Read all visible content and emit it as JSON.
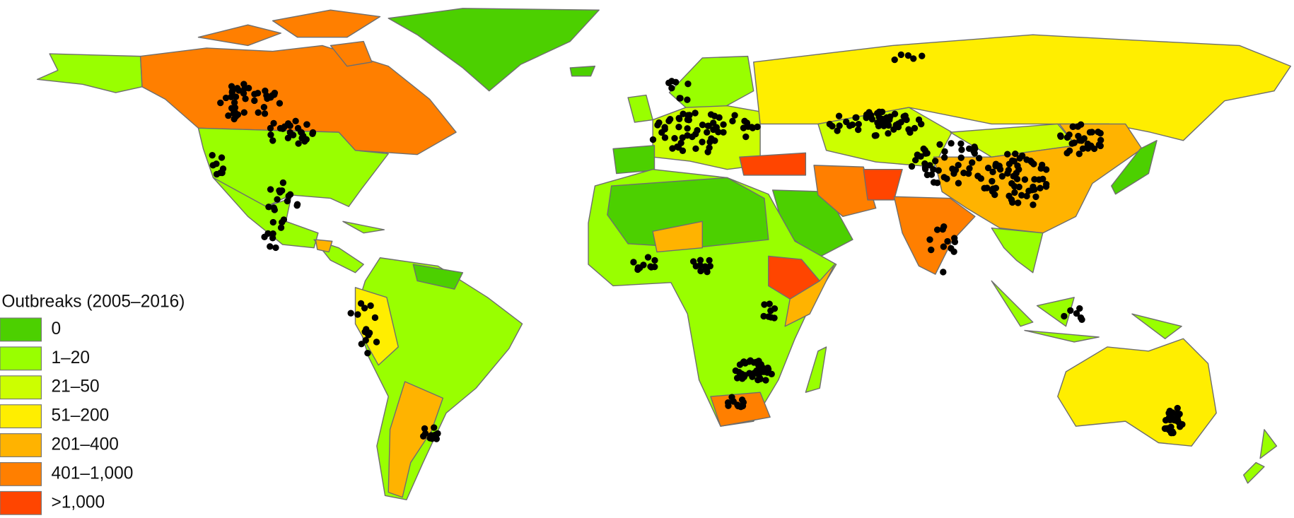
{
  "legend": {
    "title": "Outbreaks (2005–2016)",
    "items": [
      {
        "label": "0",
        "color": "#4cd000"
      },
      {
        "label": "1–20",
        "color": "#99ff00"
      },
      {
        "label": "21–50",
        "color": "#ccff00"
      },
      {
        "label": "51–200",
        "color": "#ffee00"
      },
      {
        "label": "201–400",
        "color": "#ffb300"
      },
      {
        "label": "401–1,000",
        "color": "#ff7f00"
      },
      {
        "label": ">1,000",
        "color": "#ff4500"
      }
    ]
  }
}
